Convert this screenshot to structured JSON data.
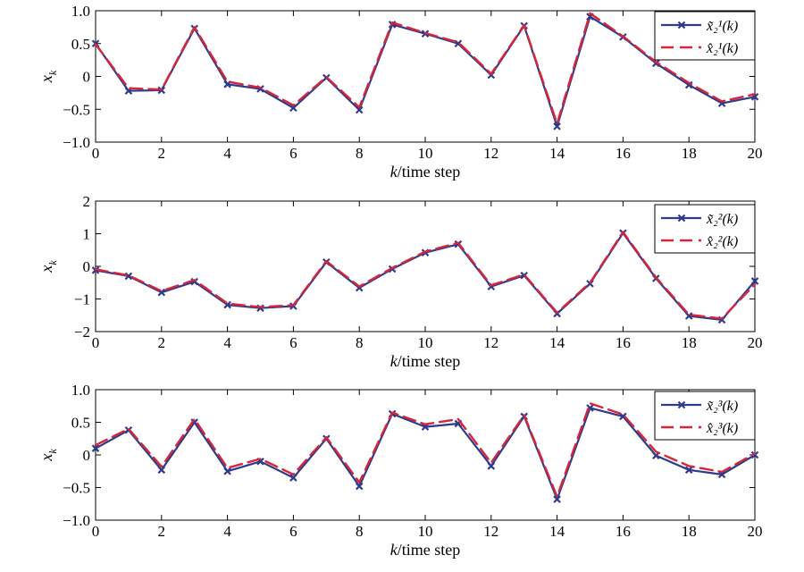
{
  "chart_data": [
    {
      "type": "line",
      "xlabel": "k/time step",
      "ylabel": "x_k",
      "xlim": [
        0,
        20
      ],
      "ylim": [
        -1.0,
        1.0
      ],
      "xticks": [
        "0",
        "2",
        "4",
        "6",
        "8",
        "10",
        "12",
        "14",
        "16",
        "18",
        "20"
      ],
      "yticks": [
        "1.0",
        "0.5",
        "0",
        "−0.5",
        "−1.0"
      ],
      "legend_placement": "top-right",
      "x": [
        0,
        1,
        2,
        3,
        4,
        5,
        6,
        7,
        8,
        9,
        10,
        11,
        12,
        13,
        14,
        15,
        16,
        17,
        18,
        19,
        20
      ],
      "series": [
        {
          "name": "x̃₂¹(k)",
          "color": "#2e3a8c",
          "style": "solid-x-markers",
          "values": [
            0.5,
            -0.22,
            -0.21,
            0.73,
            -0.12,
            -0.19,
            -0.48,
            -0.02,
            -0.51,
            0.79,
            0.65,
            0.5,
            0.02,
            0.77,
            -0.76,
            0.91,
            0.6,
            0.2,
            -0.13,
            -0.41,
            -0.31
          ]
        },
        {
          "name": "x̂₂¹(k)",
          "color": "#d6263a",
          "style": "dashed",
          "values": [
            0.49,
            -0.18,
            -0.2,
            0.75,
            -0.08,
            -0.17,
            -0.44,
            -0.01,
            -0.47,
            0.82,
            0.66,
            0.52,
            0.04,
            0.78,
            -0.72,
            0.96,
            0.61,
            0.22,
            -0.1,
            -0.38,
            -0.27
          ]
        }
      ]
    },
    {
      "type": "line",
      "xlabel": "k/time step",
      "ylabel": "x_k",
      "xlim": [
        0,
        20
      ],
      "ylim": [
        -2,
        2
      ],
      "xticks": [
        "0",
        "2",
        "4",
        "6",
        "8",
        "10",
        "12",
        "14",
        "16",
        "18",
        "20"
      ],
      "yticks": [
        "2",
        "1",
        "0",
        "−1",
        "−2"
      ],
      "legend_placement": "top-right",
      "x": [
        0,
        1,
        2,
        3,
        4,
        5,
        6,
        7,
        8,
        9,
        10,
        11,
        12,
        13,
        14,
        15,
        16,
        17,
        18,
        19,
        20
      ],
      "series": [
        {
          "name": "x̃₂²(k)",
          "color": "#2e3a8c",
          "style": "solid-x-markers",
          "values": [
            -0.12,
            -0.3,
            -0.8,
            -0.47,
            -1.18,
            -1.28,
            -1.22,
            0.13,
            -0.66,
            -0.08,
            0.42,
            0.68,
            -0.62,
            -0.28,
            -1.45,
            -0.53,
            1.02,
            -0.37,
            -1.52,
            -1.64,
            -0.45
          ]
        },
        {
          "name": "x̂₂²(k)",
          "color": "#d6263a",
          "style": "dashed",
          "values": [
            -0.09,
            -0.28,
            -0.76,
            -0.42,
            -1.14,
            -1.25,
            -1.19,
            0.16,
            -0.62,
            -0.05,
            0.45,
            0.72,
            -0.58,
            -0.25,
            -1.42,
            -0.5,
            1.05,
            -0.34,
            -1.48,
            -1.6,
            -0.55
          ]
        }
      ]
    },
    {
      "type": "line",
      "xlabel": "k/time step",
      "ylabel": "x_k",
      "xlim": [
        0,
        20
      ],
      "ylim": [
        -1.0,
        1.0
      ],
      "xticks": [
        "0",
        "2",
        "4",
        "6",
        "8",
        "10",
        "12",
        "14",
        "16",
        "18",
        "20"
      ],
      "yticks": [
        "1.0",
        "0.5",
        "0",
        "−0.5",
        "−1.0"
      ],
      "legend_placement": "top-right",
      "x": [
        0,
        1,
        2,
        3,
        4,
        5,
        6,
        7,
        8,
        9,
        10,
        11,
        12,
        13,
        14,
        15,
        16,
        17,
        18,
        19,
        20
      ],
      "series": [
        {
          "name": "x̃₂³(k)",
          "color": "#2e3a8c",
          "style": "solid-x-markers",
          "values": [
            0.1,
            0.38,
            -0.23,
            0.5,
            -0.25,
            -0.1,
            -0.35,
            0.25,
            -0.48,
            0.63,
            0.43,
            0.48,
            -0.17,
            0.59,
            -0.68,
            0.72,
            0.59,
            -0.01,
            -0.23,
            -0.3,
            0.0
          ]
        },
        {
          "name": "x̂₂³(k)",
          "color": "#d6263a",
          "style": "dashed",
          "values": [
            0.15,
            0.4,
            -0.18,
            0.55,
            -0.2,
            -0.06,
            -0.3,
            0.27,
            -0.42,
            0.65,
            0.47,
            0.55,
            -0.12,
            0.61,
            -0.64,
            0.79,
            0.62,
            0.05,
            -0.17,
            -0.26,
            0.02
          ]
        }
      ]
    }
  ]
}
